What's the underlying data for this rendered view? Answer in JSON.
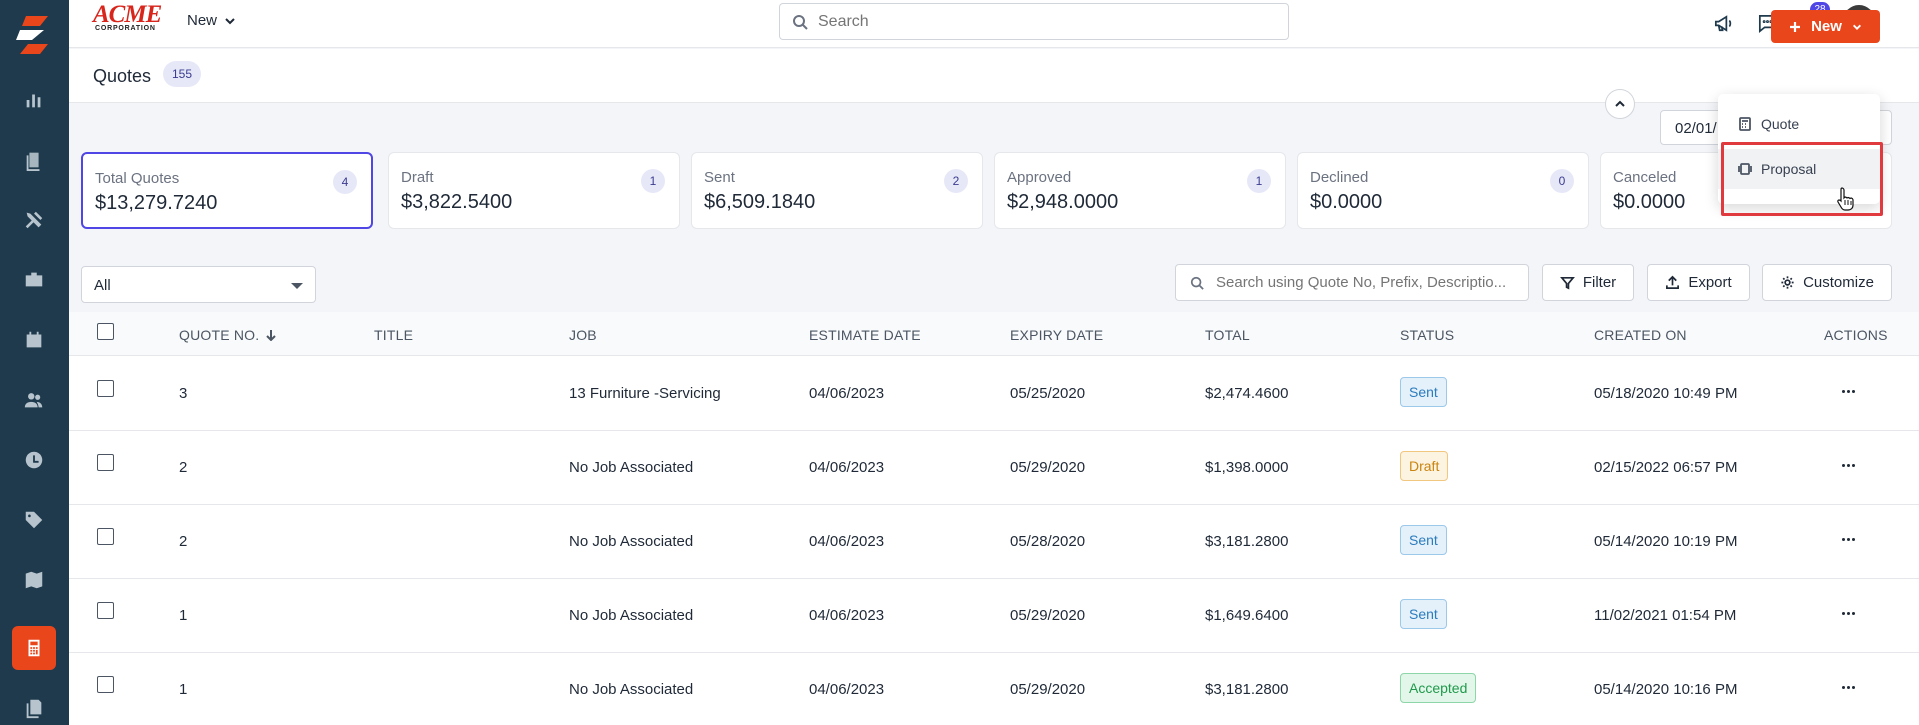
{
  "topbar": {
    "brand_line1": "ACME",
    "brand_line2": "CORPORATION",
    "new_label": "New",
    "search_placeholder": "Search",
    "notification_count": "28"
  },
  "sidebar": {
    "items": [
      "logo",
      "reports",
      "jobs",
      "tools",
      "briefcase",
      "calendar",
      "customers",
      "timesheets",
      "tags",
      "map",
      "quotes",
      "documents"
    ],
    "active": "quotes"
  },
  "header": {
    "title": "Quotes",
    "count": "155",
    "new_button": "New",
    "date_range": "02/01/"
  },
  "menu": {
    "items": [
      {
        "label": "Quote",
        "icon": "calculator-icon"
      },
      {
        "label": "Proposal",
        "icon": "proposal-icon"
      }
    ]
  },
  "stats": [
    {
      "label": "Total Quotes",
      "value": "$13,279.7240",
      "count": "4"
    },
    {
      "label": "Draft",
      "value": "$3,822.5400",
      "count": "1"
    },
    {
      "label": "Sent",
      "value": "$6,509.1840",
      "count": "2"
    },
    {
      "label": "Approved",
      "value": "$2,948.0000",
      "count": "1"
    },
    {
      "label": "Declined",
      "value": "$0.0000",
      "count": "0"
    },
    {
      "label": "Canceled",
      "value": "$0.0000",
      "count": ""
    }
  ],
  "filters": {
    "select_value": "All",
    "search_placeholder": "Search using Quote No, Prefix, Descriptio...",
    "filter_label": "Filter",
    "export_label": "Export",
    "customize_label": "Customize"
  },
  "table": {
    "columns": [
      "QUOTE NO.",
      "TITLE",
      "JOB",
      "ESTIMATE DATE",
      "EXPIRY DATE",
      "TOTAL",
      "STATUS",
      "CREATED ON",
      "ACTIONS"
    ],
    "rows": [
      {
        "quote_no": "3",
        "title": "",
        "job": "13 Furniture -Servicing",
        "estimate_date": "04/06/2023",
        "expiry_date": "05/25/2020",
        "total": "$2,474.4600",
        "status": "Sent",
        "created_on": "05/18/2020 10:49 PM"
      },
      {
        "quote_no": "2",
        "title": "",
        "job": "No Job Associated",
        "estimate_date": "04/06/2023",
        "expiry_date": "05/29/2020",
        "total": "$1,398.0000",
        "status": "Draft",
        "created_on": "02/15/2022 06:57 PM"
      },
      {
        "quote_no": "2",
        "title": "",
        "job": "No Job Associated",
        "estimate_date": "04/06/2023",
        "expiry_date": "05/28/2020",
        "total": "$3,181.2800",
        "status": "Sent",
        "created_on": "05/14/2020 10:19 PM"
      },
      {
        "quote_no": "1",
        "title": "",
        "job": "No Job Associated",
        "estimate_date": "04/06/2023",
        "expiry_date": "05/29/2020",
        "total": "$1,649.6400",
        "status": "Sent",
        "created_on": "11/02/2021 01:54 PM"
      },
      {
        "quote_no": "1",
        "title": "",
        "job": "No Job Associated",
        "estimate_date": "04/06/2023",
        "expiry_date": "05/29/2020",
        "total": "$3,181.2800",
        "status": "Accepted",
        "created_on": "05/14/2020 10:16 PM"
      }
    ]
  },
  "colors": {
    "sidebar": "#1e3a4c",
    "accent": "#e9461c",
    "selection": "#4f46e5",
    "highlight_box": "#e03a3e"
  }
}
